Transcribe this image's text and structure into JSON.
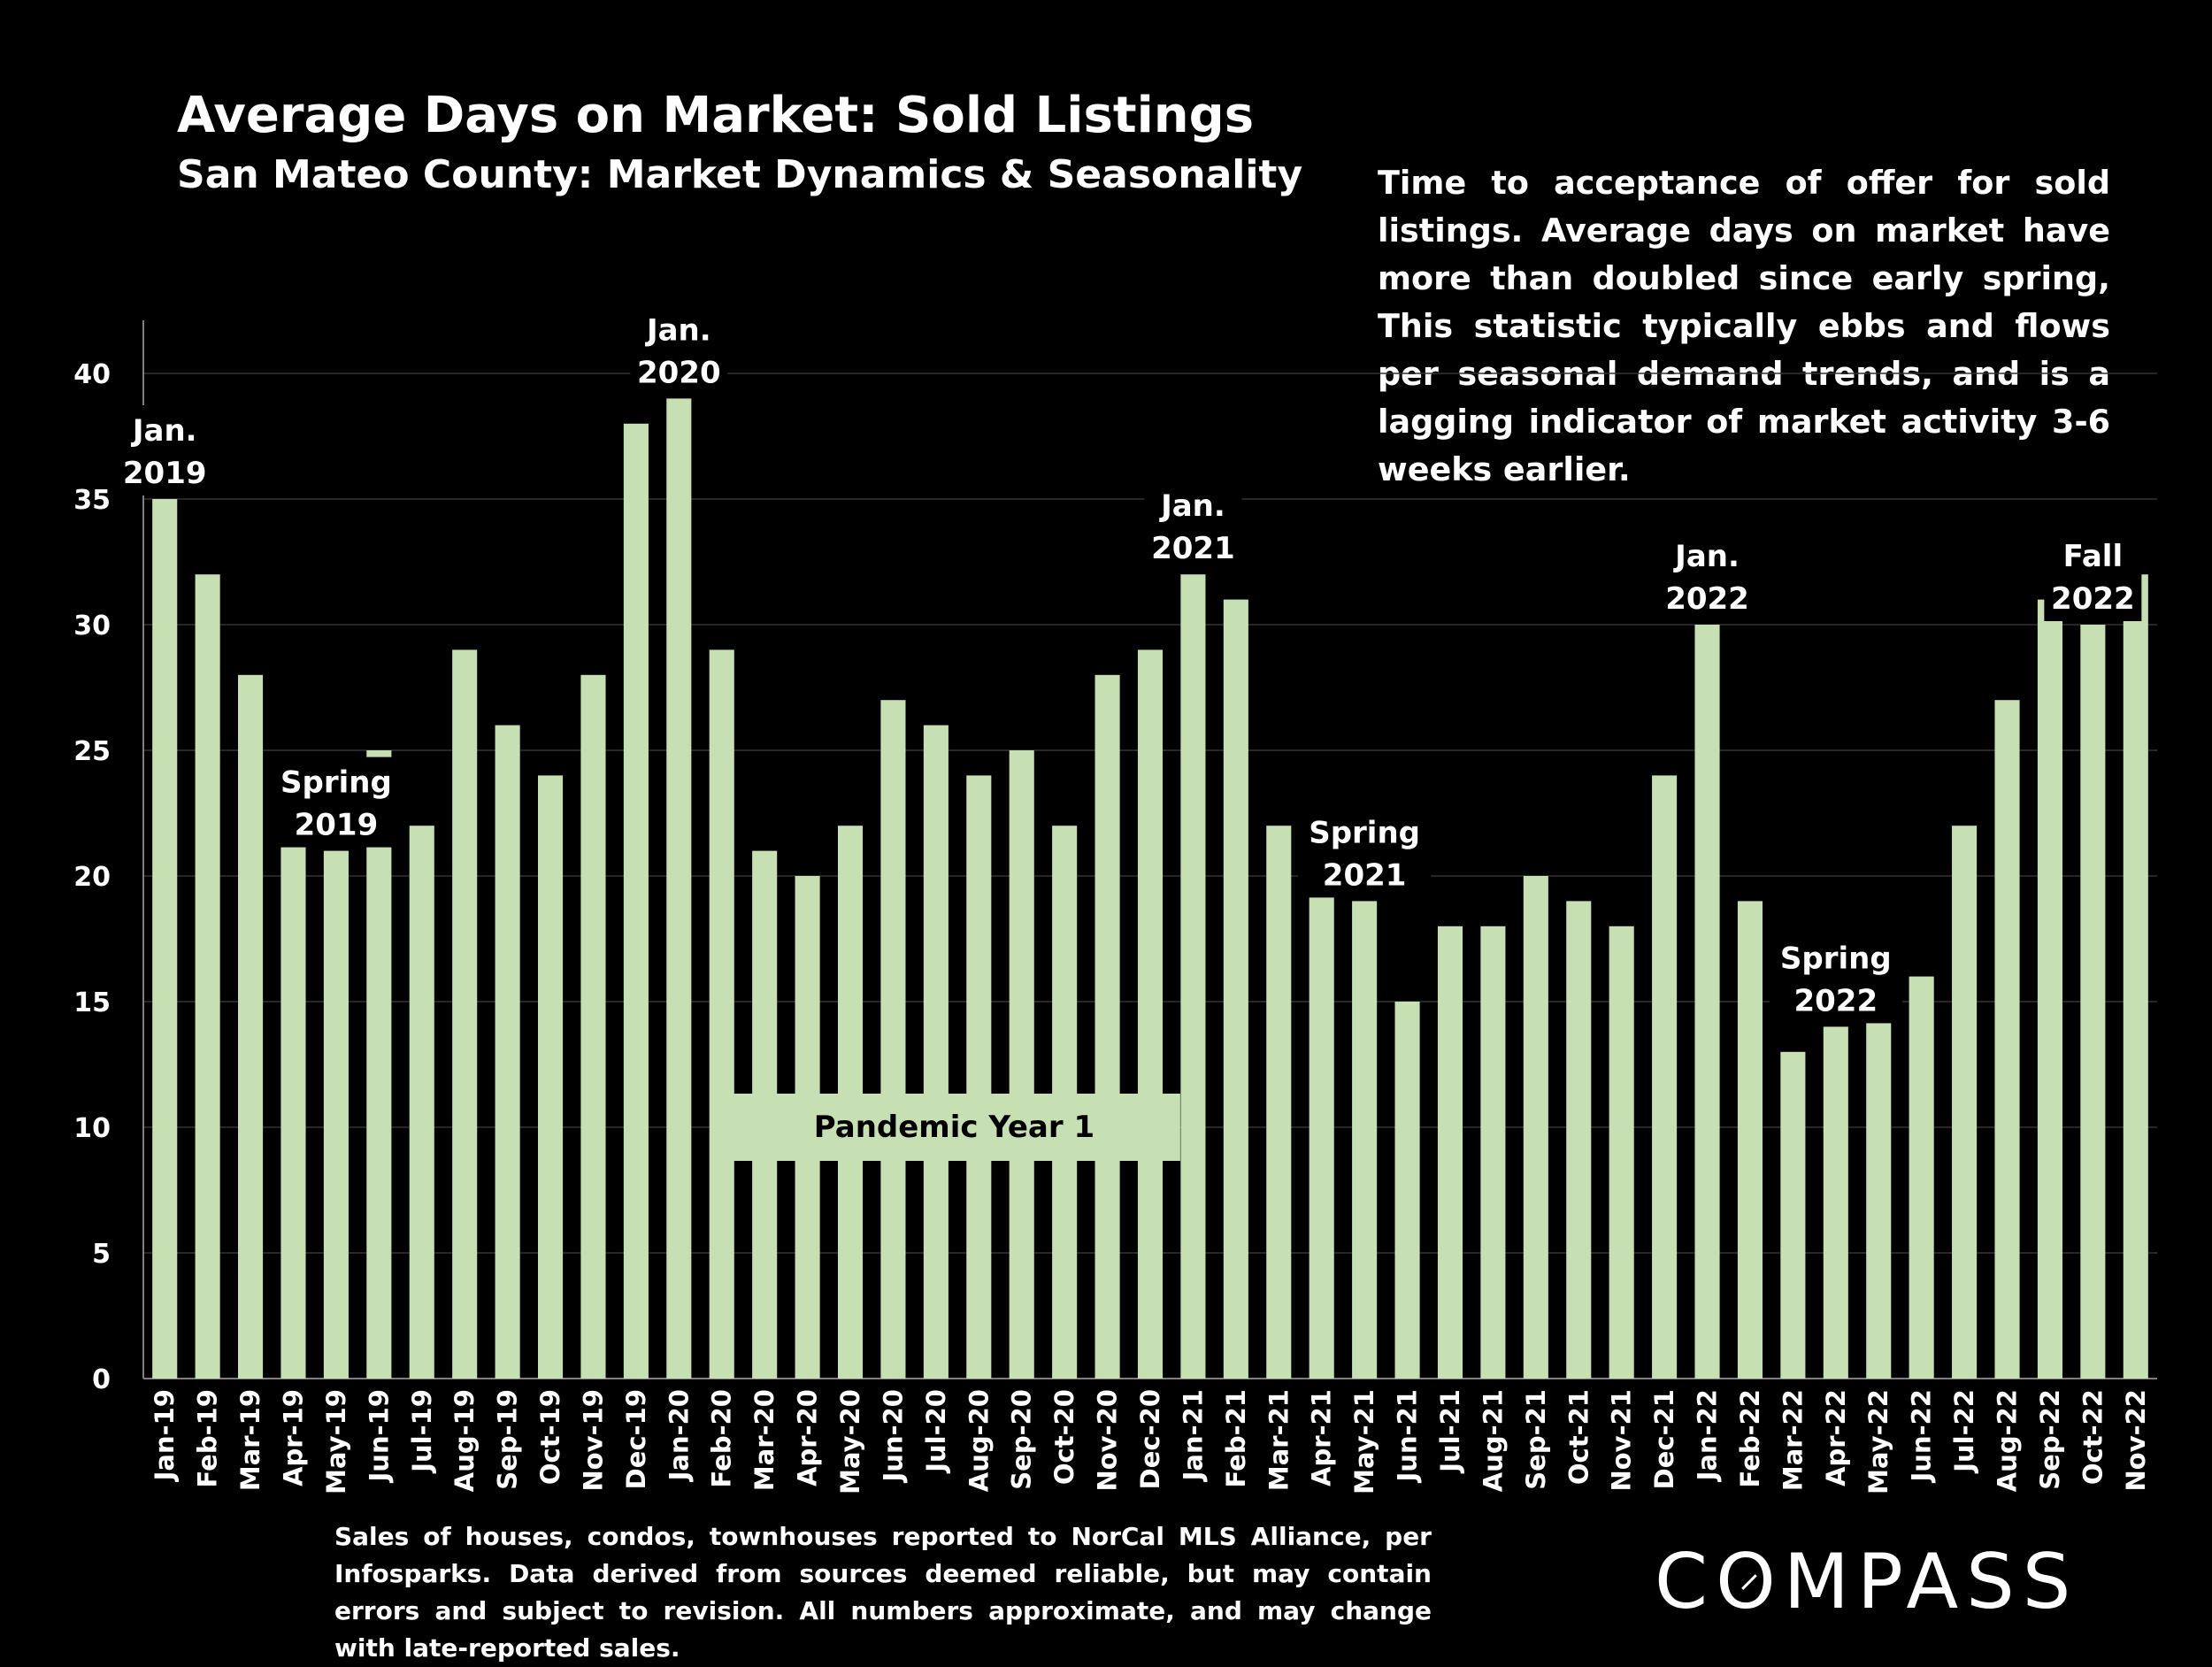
{
  "header": {
    "title": "Average Days on Market: Sold Listings",
    "subtitle": "San Mateo County: Market Dynamics & Seasonality"
  },
  "note": "Time to acceptance of offer for sold listings. Average days on market have more than doubled since early spring, This statistic typically ebbs and flows per seasonal demand trends, and is a lagging indicator of market activity 3-6 weeks earlier.",
  "footer": {
    "source": "Sales of houses, condos, townhouses reported to NorCal MLS Alliance, per Infosparks. Data derived from sources deemed reliable, but may contain errors and subject to revision. All numbers approximate, and may change with late-reported sales.",
    "logo": "COMPASS"
  },
  "colors": {
    "background": "#000000",
    "bar": "#c6e0b4",
    "text": "#ffffff",
    "grid": "#333333"
  },
  "chart_data": {
    "type": "bar",
    "categories": [
      "Jan-19",
      "Feb-19",
      "Mar-19",
      "Apr-19",
      "May-19",
      "Jun-19",
      "Jul-19",
      "Aug-19",
      "Sep-19",
      "Oct-19",
      "Nov-19",
      "Dec-19",
      "Jan-20",
      "Feb-20",
      "Mar-20",
      "Apr-20",
      "May-20",
      "Jun-20",
      "Jul-20",
      "Aug-20",
      "Sep-20",
      "Oct-20",
      "Nov-20",
      "Dec-20",
      "Jan-21",
      "Feb-21",
      "Mar-21",
      "Apr-21",
      "May-21",
      "Jun-21",
      "Jul-21",
      "Aug-21",
      "Sep-21",
      "Oct-21",
      "Nov-21",
      "Dec-21",
      "Jan-22",
      "Feb-22",
      "Mar-22",
      "Apr-22",
      "May-22",
      "Jun-22",
      "Jul-22",
      "Aug-22",
      "Sep-22",
      "Oct-22",
      "Nov-22"
    ],
    "values": [
      35,
      32,
      28,
      22,
      21,
      25,
      22,
      29,
      26,
      24,
      28,
      38,
      39,
      29,
      21,
      20,
      22,
      27,
      26,
      24,
      25,
      22,
      28,
      29,
      32,
      31,
      22,
      21,
      19,
      15,
      18,
      18,
      20,
      19,
      18,
      24,
      30,
      19,
      13,
      14,
      16,
      16,
      22,
      27,
      31,
      30,
      32
    ],
    "ylim": [
      0,
      40
    ],
    "yticks": [
      0,
      5,
      10,
      15,
      20,
      25,
      30,
      35,
      40
    ],
    "grid": true,
    "annotations": [
      {
        "category": "Jan-19",
        "lines": [
          "Jan.",
          "2019"
        ]
      },
      {
        "category": "May-19",
        "lines": [
          "Spring",
          "2019"
        ]
      },
      {
        "category": "Jan-20",
        "lines": [
          "Jan.",
          "2020"
        ]
      },
      {
        "category": "Jan-21",
        "lines": [
          "Jan.",
          "2021"
        ]
      },
      {
        "category": "May-21",
        "lines": [
          "Spring",
          "2021"
        ]
      },
      {
        "category": "Jan-22",
        "lines": [
          "Jan.",
          "2022"
        ]
      },
      {
        "category": "Apr-22",
        "lines": [
          "Spring",
          "2022"
        ]
      },
      {
        "category": "Oct-22",
        "lines": [
          "Fall",
          "2022"
        ]
      }
    ],
    "band": {
      "label": "Pandemic Year 1",
      "from": "Mar-20",
      "to": "Dec-20",
      "value": 10
    }
  }
}
